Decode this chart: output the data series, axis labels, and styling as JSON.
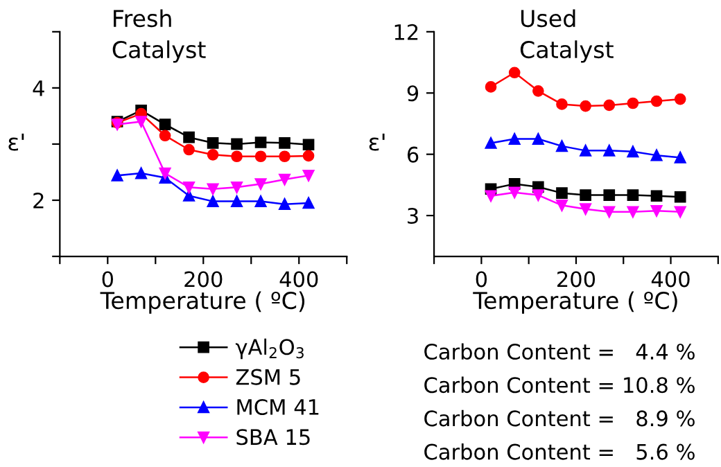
{
  "chart_data": [
    {
      "type": "line",
      "title": "Fresh\nCatalyst",
      "xlabel": "Temperature ( ºC)",
      "ylabel": "ε'",
      "x": [
        20,
        70,
        120,
        170,
        220,
        270,
        320,
        370,
        420
      ],
      "xlim": [
        -100,
        500
      ],
      "xticks": [
        {
          "value": -100,
          "label": null
        },
        0,
        {
          "value": 100,
          "label": null
        },
        200,
        {
          "value": 300,
          "label": null
        },
        400,
        {
          "value": 500,
          "label": null
        }
      ],
      "ylim": [
        1,
        5
      ],
      "yticks": [
        {
          "value": 1,
          "label": null
        },
        2,
        {
          "value": 3,
          "label": null
        },
        4,
        {
          "value": 5,
          "label": null
        }
      ],
      "grid": false,
      "legend": "bottom",
      "line_style": "solid",
      "series": [
        {
          "name": "γAl$_{2}$O$_{3}$",
          "color": "#000000",
          "marker": "square",
          "values": [
            3.4,
            3.6,
            3.35,
            3.12,
            3.02,
            3.0,
            3.03,
            3.02,
            2.99
          ]
        },
        {
          "name": "ZSM 5",
          "color": "#ff0000",
          "marker": "circle",
          "values": [
            3.38,
            3.54,
            3.15,
            2.9,
            2.81,
            2.78,
            2.78,
            2.78,
            2.79
          ]
        },
        {
          "name": "MCM 41",
          "color": "#0000ff",
          "marker": "triangle",
          "values": [
            2.44,
            2.48,
            2.4,
            2.08,
            1.98,
            1.98,
            1.98,
            1.93,
            1.95
          ]
        },
        {
          "name": "SBA 15",
          "color": "#ff00ff",
          "marker": "triangle_down",
          "values": [
            3.35,
            3.4,
            2.48,
            2.23,
            2.2,
            2.23,
            2.29,
            2.37,
            2.44
          ]
        }
      ],
      "annotations": [
        "Carbon Content =   4.4 %",
        "Carbon Content = 10.8 %",
        "Carbon Content =   8.9 %",
        "Carbon Content =   5.6 %"
      ]
    },
    {
      "type": "line",
      "title": "Used\nCatalyst",
      "xlabel": "Temperature ( ºC)",
      "ylabel": "ε'",
      "x": [
        20,
        70,
        120,
        170,
        220,
        270,
        320,
        370,
        420
      ],
      "xlim": [
        -100,
        500
      ],
      "xticks": [
        {
          "value": -100,
          "label": null
        },
        0,
        {
          "value": 100,
          "label": null
        },
        200,
        {
          "value": 300,
          "label": null
        },
        400,
        {
          "value": 500,
          "label": null
        }
      ],
      "ylim": [
        1,
        12
      ],
      "yticks": [
        3,
        6,
        9,
        12
      ],
      "grid": false,
      "line_style": "solid",
      "series": [
        {
          "color": "#000000",
          "marker": "square",
          "values": [
            4.3,
            4.55,
            4.4,
            4.1,
            4.0,
            4.0,
            4.0,
            3.96,
            3.91
          ]
        },
        {
          "color": "#ff0000",
          "marker": "circle",
          "values": [
            9.3,
            10.0,
            9.1,
            8.45,
            8.36,
            8.4,
            8.5,
            8.6,
            8.7
          ]
        },
        {
          "color": "#0000ff",
          "marker": "triangle",
          "values": [
            6.55,
            6.75,
            6.75,
            6.4,
            6.18,
            6.18,
            6.13,
            5.95,
            5.84
          ]
        },
        {
          "color": "#ff00ff",
          "marker": "triangle_down",
          "values": [
            3.96,
            4.13,
            4.0,
            3.5,
            3.32,
            3.18,
            3.18,
            3.23,
            3.18
          ]
        }
      ]
    }
  ]
}
